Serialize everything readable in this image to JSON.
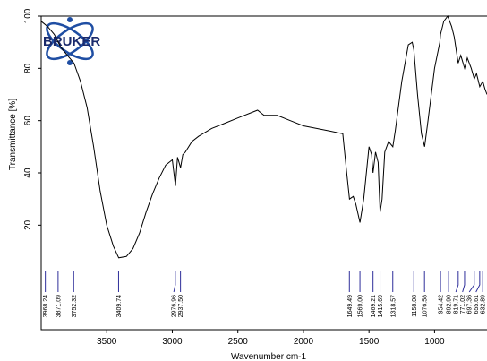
{
  "chart_data": {
    "type": "line",
    "logo": "BRUKER",
    "ylabel": "Transmittance [%]",
    "xlabel": "Wavenumber cm-1",
    "xlim": [
      4000,
      600
    ],
    "ylim": [
      -20,
      100
    ],
    "xticks": [
      3500,
      3000,
      2500,
      2000,
      1500,
      1000
    ],
    "yticks": [
      20,
      40,
      60,
      80,
      100
    ],
    "color": "#000000",
    "peak_color": "#2e2e9a",
    "x": [
      4000,
      3950,
      3900,
      3850,
      3800,
      3750,
      3700,
      3650,
      3600,
      3550,
      3500,
      3450,
      3409,
      3350,
      3300,
      3250,
      3200,
      3150,
      3100,
      3050,
      3000,
      2976,
      2960,
      2937,
      2920,
      2900,
      2850,
      2800,
      2700,
      2600,
      2500,
      2400,
      2350,
      2300,
      2200,
      2100,
      2000,
      1900,
      1800,
      1700,
      1670,
      1649,
      1620,
      1600,
      1569,
      1540,
      1500,
      1480,
      1469,
      1450,
      1430,
      1415,
      1400,
      1380,
      1350,
      1318,
      1300,
      1250,
      1200,
      1170,
      1158,
      1130,
      1100,
      1076,
      1050,
      1000,
      960,
      954,
      930,
      900,
      892,
      870,
      850,
      820,
      800,
      771,
      750,
      720,
      697,
      680,
      655,
      632,
      615,
      600
    ],
    "values": [
      98,
      96,
      93,
      88,
      85,
      82,
      75,
      65,
      50,
      33,
      20,
      12,
      7.5,
      8,
      11,
      17,
      25,
      32,
      38,
      43,
      45,
      35,
      46,
      42,
      47,
      48,
      52,
      54,
      57,
      59,
      61,
      63,
      64,
      62,
      62,
      60,
      58,
      57,
      56,
      55,
      40,
      30,
      31,
      28,
      21,
      30,
      50,
      47,
      40,
      48,
      44,
      25,
      30,
      48,
      52,
      50,
      56,
      75,
      89,
      90,
      87,
      70,
      55,
      50,
      60,
      80,
      90,
      93,
      98,
      100,
      99,
      96,
      92,
      82,
      85,
      80,
      84,
      80,
      76,
      78,
      73,
      75,
      72,
      70
    ],
    "peaks": [
      3968.24,
      3871.09,
      3752.32,
      3409.74,
      2976.96,
      2937.5,
      1649.49,
      1569,
      1469.21,
      1415.69,
      1318.57,
      1158.08,
      1076.58,
      954.42,
      892.9,
      819.71,
      771.02,
      697.36,
      655.61,
      632.89
    ],
    "peak_labels": [
      "3968.24",
      "3871.09",
      "3752.32",
      "3409.74",
      "2976.96",
      "2937.50",
      "1649.49",
      "1569.00",
      "1469.21",
      "1415.69",
      "1318.57",
      "1158.08",
      "1076.58",
      "954.42",
      "892.90",
      "819.71",
      "771.02",
      "697.36",
      "655.61",
      "632.89"
    ]
  }
}
